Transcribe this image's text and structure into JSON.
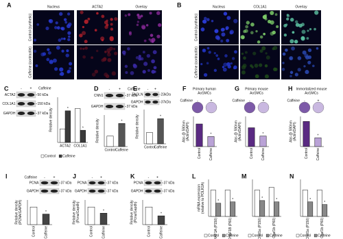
{
  "figure": {
    "panels": [
      {
        "label": "A",
        "columns": [
          "Nucleus",
          "ACTA2",
          "Overlay"
        ],
        "rows": [
          "Control (synthetic)",
          "Caffeine (contractile)"
        ]
      },
      {
        "label": "B",
        "columns": [
          "Nucleus",
          "COL1A1",
          "Overlay"
        ],
        "rows": [
          "Control (synthetic)",
          "Caffeine (contractile)"
        ]
      },
      {
        "label": "C",
        "treatment": "Caffeine",
        "lanes": [
          "-",
          "+"
        ],
        "blots": [
          {
            "name": "ACTA2",
            "size": "50 kDa"
          },
          {
            "name": "COL1A1",
            "size": "150 kDa"
          },
          {
            "name": "GAPDH",
            "size": "37 kDa"
          }
        ],
        "chart": {
          "type": "grouped-bar",
          "ylabel": [
            "Relative density"
          ],
          "categories": [
            "ACTA2",
            "COL1A1"
          ],
          "ylim": [
            0,
            1
          ],
          "series": [
            {
              "name": "Control",
              "color": "#ffffff",
              "values": [
                0.3,
                0.75
              ],
              "marks": [
                null,
                null
              ]
            },
            {
              "name": "Caffeine",
              "color": "#3a3a3a",
              "values": [
                0.7,
                0.27
              ],
              "marks": [
                "*",
                "*"
              ]
            }
          ]
        }
      },
      {
        "label": "D",
        "treatment": "Caffeine",
        "lanes": [
          "-",
          "+"
        ],
        "blots": [
          {
            "name": "CNN1",
            "size": "37 kDa"
          },
          {
            "name": "GAPDH",
            "size": "37 kDa"
          }
        ],
        "chart": {
          "type": "bar",
          "ylabel": [
            "Relative density"
          ],
          "categories": [
            "Control",
            "Caffeine"
          ],
          "ylim": [
            0,
            3
          ],
          "values": [
            1,
            2.2
          ],
          "colors": [
            "#ffffff",
            "#555555"
          ],
          "marks": [
            null,
            "*"
          ]
        }
      },
      {
        "label": "E",
        "lanes": [
          "-",
          "+"
        ],
        "blots": [
          {
            "name": "TAGLN",
            "size": "23kDa"
          },
          {
            "name": "GAPDH",
            "size": "37kDa"
          }
        ],
        "chart": {
          "type": "bar",
          "ylabel": [
            "Relative density"
          ],
          "categories": [
            "Control",
            "Caffeine"
          ],
          "ylim": [
            0,
            1.5
          ],
          "values": [
            0.5,
            1.1
          ],
          "colors": [
            "#ffffff",
            "#555555"
          ],
          "marks": [
            null,
            "*"
          ]
        }
      },
      {
        "label": "F",
        "title": [
          "Primary human",
          "AoSMCs"
        ],
        "treatment": "Caffeine",
        "lanes": [
          "-",
          "+"
        ],
        "chart": {
          "type": "bar",
          "ylabel": [
            "Abs @ 590nm",
            "(Actin/DAPI)"
          ],
          "categories": [
            "Control",
            "Caffeine"
          ],
          "ylim": [
            0,
            1.2
          ],
          "values": [
            0.9,
            0.4
          ],
          "colors": [
            "#5a2a82",
            "#b9a2d6"
          ],
          "marks": [
            null,
            "*"
          ]
        }
      },
      {
        "label": "G",
        "title": [
          "Primary mouse",
          "AoSMCs"
        ],
        "treatment": "Caffeine",
        "lanes": [
          "-",
          "+"
        ],
        "chart": {
          "type": "bar",
          "ylabel": [
            "Abs @ 590nm",
            "(Actin/DAPI)"
          ],
          "categories": [
            "Control",
            "Caffeine"
          ],
          "ylim": [
            0,
            1.2
          ],
          "values": [
            0.75,
            0.42
          ],
          "colors": [
            "#5a2a82",
            "#b9a2d6"
          ],
          "marks": [
            null,
            "*"
          ]
        }
      },
      {
        "label": "H",
        "title": [
          "Immortalized mouse",
          "AoSMCs"
        ],
        "treatment": "Caffeine",
        "lanes": [
          "-",
          "+"
        ],
        "chart": {
          "type": "bar",
          "ylabel": [
            "Abs @ 590nm",
            "(Actin/DAPI)"
          ],
          "categories": [
            "Control",
            "Caffeine"
          ],
          "ylim": [
            0,
            1.2
          ],
          "values": [
            1.0,
            0.35
          ],
          "colors": [
            "#5a2a82",
            "#b9a2d6"
          ],
          "marks": [
            null,
            "*"
          ]
        }
      },
      {
        "label": "I",
        "treatment": "Caffeine",
        "lanes": [
          "-",
          "+"
        ],
        "blots": [
          {
            "name": "PCNA",
            "size": "37 kDa"
          },
          {
            "name": "GAPDH",
            "size": "37 kDa"
          }
        ],
        "chart": {
          "type": "bar",
          "ylabel": [
            "Relative density",
            "(PCNA/GAPDH)"
          ],
          "categories": [
            "Control",
            "Caffeine"
          ],
          "ylim": [
            0,
            1.4
          ],
          "values": [
            1,
            0.6
          ],
          "colors": [
            "#ffffff",
            "#444444"
          ],
          "marks": [
            null,
            "*"
          ]
        }
      },
      {
        "label": "J",
        "lanes": [
          "-",
          "+"
        ],
        "blots": [
          {
            "name": "PCNA",
            "size": "37 kDa"
          },
          {
            "name": "GAPDH",
            "size": "37 kDa"
          }
        ],
        "chart": {
          "type": "bar",
          "ylabel": [
            "Relative density",
            "(Pcna/Gapdh)"
          ],
          "categories": [
            "Control",
            "Caffeine"
          ],
          "ylim": [
            0,
            1.4
          ],
          "values": [
            1,
            0.65
          ],
          "colors": [
            "#ffffff",
            "#444444"
          ],
          "marks": [
            null,
            "*"
          ]
        }
      },
      {
        "label": "K",
        "lanes": [
          "-",
          "+"
        ],
        "blots": [
          {
            "name": "PCNA",
            "size": "37 kDa"
          },
          {
            "name": "GAPDH",
            "size": "37 kDa"
          }
        ],
        "chart": {
          "type": "bar",
          "ylabel": [
            "Relative density",
            "(Pcna/Gapdh)"
          ],
          "categories": [
            "Control",
            "Caffeine"
          ],
          "ylim": [
            0,
            1.4
          ],
          "values": [
            1,
            0.5
          ],
          "colors": [
            "#ffffff",
            "#444444"
          ],
          "marks": [
            null,
            "*"
          ]
        }
      },
      {
        "label": "L",
        "chart": {
          "type": "grouped-bar",
          "ylabel": [
            "mRNA expression",
            "(relative to POLR2A)"
          ],
          "categories": [
            "CHAF1A (P150)",
            "CHAF1B (P60)"
          ],
          "ylim": [
            0,
            1.4
          ],
          "series": [
            {
              "name": "Control",
              "color": "#ffffff",
              "values": [
                1.0,
                1.0
              ],
              "marks": [
                null,
                null
              ]
            },
            {
              "name": "Caffeine",
              "color": "#888888",
              "values": [
                0.5,
                0.55
              ],
              "marks": [
                "*",
                "*"
              ]
            }
          ]
        }
      },
      {
        "label": "M",
        "chart": {
          "type": "grouped-bar",
          "ylabel": [],
          "categories": [
            "Chaf1a (P150)",
            "Chaf1b (P60)"
          ],
          "ylim": [
            0,
            1.4
          ],
          "series": [
            {
              "name": "Control",
              "color": "#ffffff",
              "values": [
                1.0,
                1.1
              ],
              "marks": [
                null,
                null
              ]
            },
            {
              "name": "Caffeine",
              "color": "#888888",
              "values": [
                0.6,
                0.55
              ],
              "marks": [
                "*",
                "*"
              ]
            }
          ]
        }
      },
      {
        "label": "N",
        "chart": {
          "type": "grouped-bar",
          "ylabel": [],
          "categories": [
            "Chaf1a (P150)",
            "Chaf1b (P60)"
          ],
          "ylim": [
            0,
            1.4
          ],
          "series": [
            {
              "name": "Control",
              "color": "#ffffff",
              "values": [
                1.0,
                1.0
              ],
              "marks": [
                null,
                null
              ]
            },
            {
              "name": "Caffeine",
              "color": "#888888",
              "values": [
                0.55,
                0.45
              ],
              "marks": [
                "*",
                "*"
              ]
            }
          ]
        }
      }
    ]
  }
}
